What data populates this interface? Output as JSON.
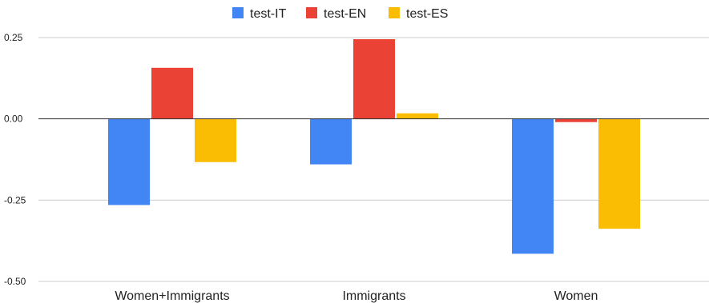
{
  "chart_data": {
    "type": "bar",
    "title": "",
    "xlabel": "",
    "ylabel": "",
    "categories": [
      "Women+Immigrants",
      "Immigrants",
      "Women"
    ],
    "series": [
      {
        "name": "test-IT",
        "color": "#4285F4",
        "values": [
          -0.265,
          -0.14,
          -0.415
        ]
      },
      {
        "name": "test-EN",
        "color": "#EA4335",
        "values": [
          0.157,
          0.245,
          -0.01
        ]
      },
      {
        "name": "test-ES",
        "color": "#FBBC04",
        "values": [
          -0.133,
          0.017,
          -0.338
        ]
      }
    ],
    "ylim": [
      -0.5,
      0.25
    ],
    "yticks": [
      0.25,
      0.0,
      -0.25,
      -0.5
    ],
    "ytick_labels": [
      "0.25",
      "0.00",
      "-0.25",
      "-0.50"
    ],
    "grid": true,
    "legend_position": "top-center"
  }
}
